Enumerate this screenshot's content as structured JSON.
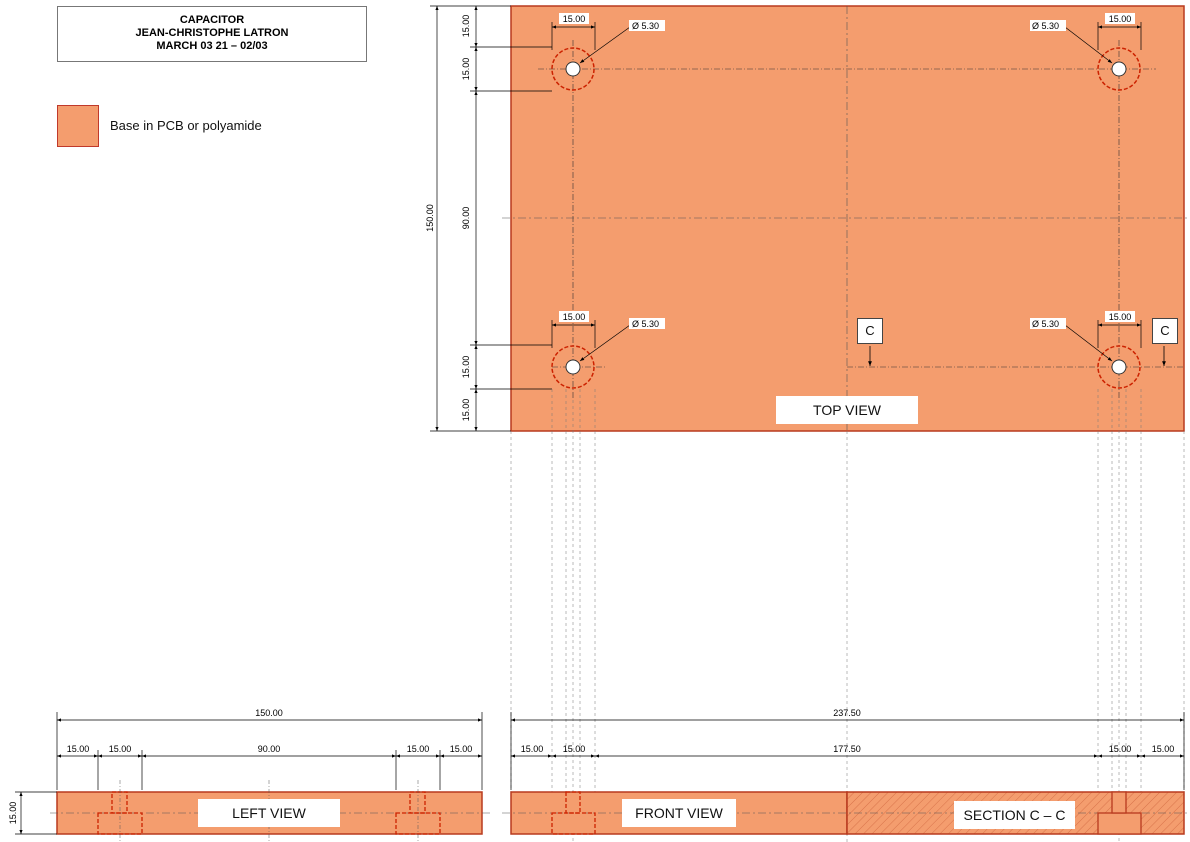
{
  "title": {
    "line1": "CAPACITOR",
    "line2": "JEAN-CHRISTOPHE LATRON",
    "line3": "MARCH 03 21 – 02/03"
  },
  "legend": {
    "label": "Base in PCB or polyamide",
    "color": "#f49d6e",
    "border_color": "#c0392b"
  },
  "views": {
    "top": "TOP VIEW",
    "left": "LEFT VIEW",
    "front": "FRONT VIEW",
    "section": "SECTION C – C"
  },
  "section_marker": "C",
  "dimensions": {
    "hole_spacing": "15.00",
    "hole_diameter": "Ø 5.30",
    "height_total": "150.00",
    "height_middle": "90.00",
    "edge": "15.00",
    "left_total": "150.00",
    "left_middle": "90.00",
    "front_total": "237.50",
    "front_middle": "177.50",
    "thickness": "15.00"
  }
}
